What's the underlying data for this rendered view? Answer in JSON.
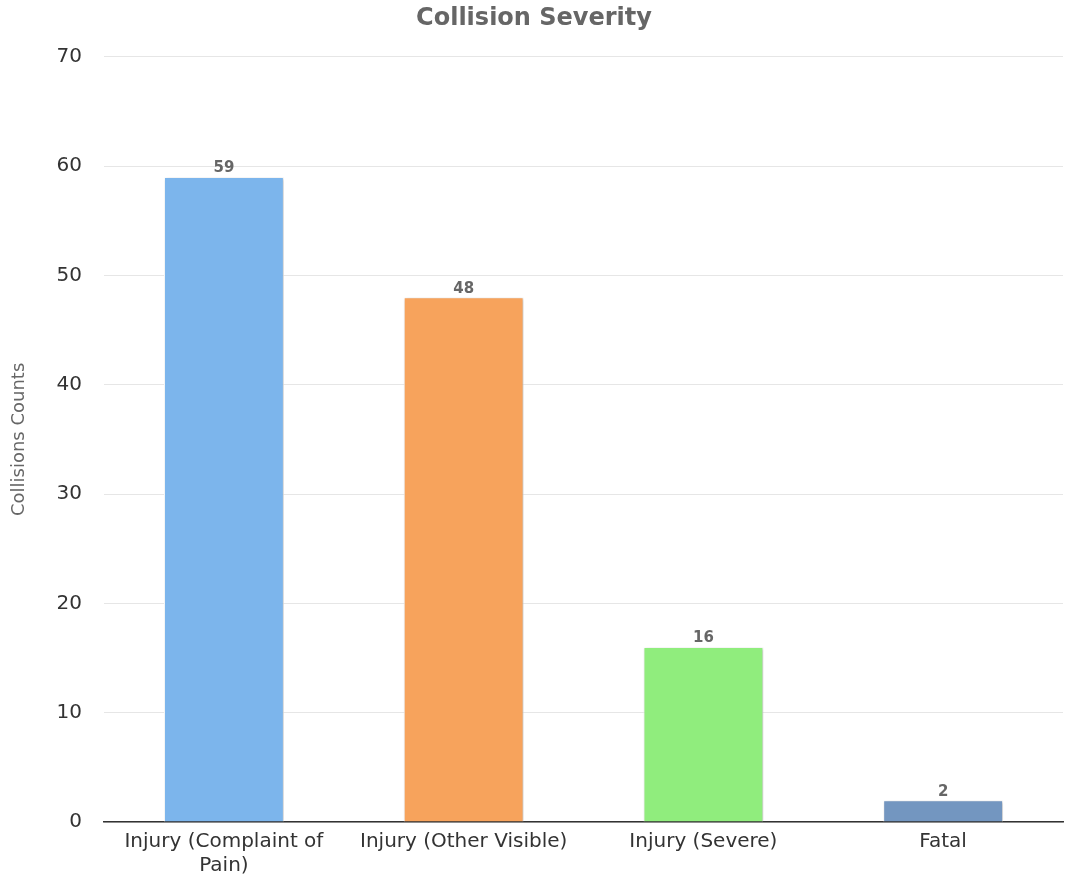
{
  "chart_data": {
    "type": "bar",
    "title": "Collision Severity",
    "ylabel": "Collisions Counts",
    "categories": [
      "Injury (Complaint of Pain)",
      "Injury (Other Visible)",
      "Injury (Severe)",
      "Fatal"
    ],
    "values": [
      59,
      48,
      16,
      2
    ],
    "colors": [
      "#7cb5ec",
      "#f7a35c",
      "#90ed7d",
      "#7396c0"
    ],
    "ylim": [
      0,
      70
    ],
    "yticks": [
      0,
      10,
      20,
      30,
      40,
      50,
      60,
      70
    ],
    "grid": "y",
    "data_labels": true,
    "legend": false
  }
}
